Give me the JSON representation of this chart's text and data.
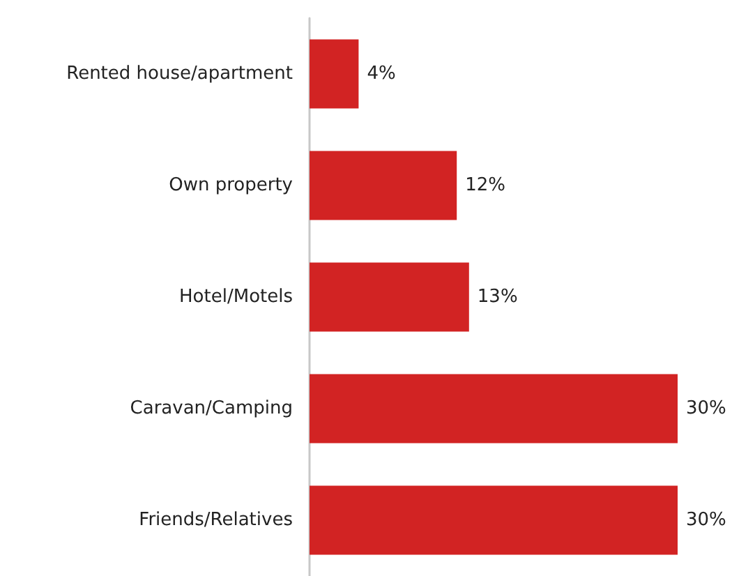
{
  "chart_data": {
    "type": "bar",
    "orientation": "horizontal",
    "categories": [
      "Rented house/apartment",
      "Own property",
      "Hotel/Motels",
      "Caravan/Camping",
      "Friends/Relatives"
    ],
    "values": [
      4,
      12,
      13,
      30,
      30
    ],
    "color": "#d22323",
    "value_labels": [
      "4%",
      "12%",
      "13%",
      "30%",
      "30%"
    ]
  }
}
